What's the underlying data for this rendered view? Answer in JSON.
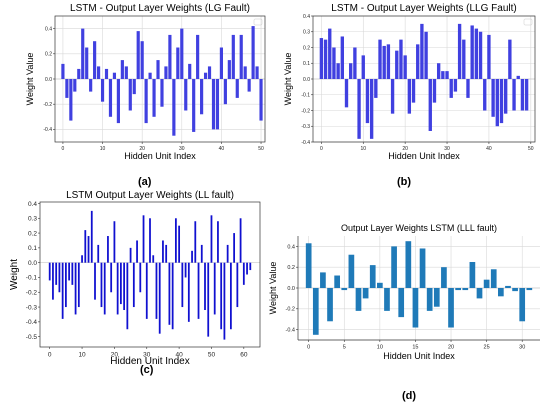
{
  "panel_labels": [
    "(a)",
    "(b)",
    "(c)",
    "(d)"
  ],
  "chart_data": [
    {
      "type": "bar",
      "title": "LSTM - Output Layer Weights (LG Fault)",
      "xlabel": "Hidden Unit Index",
      "ylabel": "Weight Value",
      "color": "#4040e0",
      "xlim": [
        -2,
        51
      ],
      "ylim": [
        -0.5,
        0.5
      ],
      "xticks": [
        0,
        10,
        20,
        30,
        40,
        50
      ],
      "yticks": [
        -0.4,
        -0.2,
        0.0,
        0.2,
        0.4
      ],
      "ytick_labels": [
        "-0.4",
        "-0.2",
        "0.0",
        "0.2",
        "0.4"
      ],
      "grid": true,
      "values": [
        0.12,
        -0.15,
        -0.33,
        -0.1,
        0.08,
        0.4,
        0.25,
        -0.1,
        0.3,
        0.1,
        -0.18,
        0.08,
        -0.3,
        0.05,
        -0.35,
        0.15,
        0.1,
        -0.25,
        -0.12,
        0.38,
        0.3,
        -0.35,
        0.05,
        -0.3,
        0.15,
        -0.22,
        0.1,
        0.35,
        -0.45,
        0.25,
        0.4,
        -0.25,
        0.12,
        -0.42,
        0.35,
        -0.28,
        0.05,
        0.1,
        -0.4,
        -0.4,
        0.25,
        -0.2,
        0.15,
        0.35,
        -0.15,
        0.35,
        0.1,
        -0.1,
        0.42,
        0.1,
        -0.33
      ]
    },
    {
      "type": "bar",
      "title": "LSTM - Output Layer Weights (LLG Fault)",
      "xlabel": "Hidden Unit Index",
      "ylabel": "Weight Value",
      "color": "#4040e0",
      "xlim": [
        -2,
        51
      ],
      "ylim": [
        -0.4,
        0.4
      ],
      "xticks": [
        0,
        10,
        20,
        30,
        40,
        50
      ],
      "yticks": [
        -0.4,
        -0.3,
        -0.2,
        -0.1,
        0.0,
        0.1,
        0.2,
        0.3,
        0.4
      ],
      "ytick_labels": [
        "-0.4",
        "-0.3",
        "-0.2",
        "-0.1",
        "0.0",
        "0.1",
        "0.2",
        "0.3",
        "0.4"
      ],
      "grid": true,
      "values": [
        0.26,
        0.25,
        0.32,
        0.2,
        0.1,
        0.27,
        -0.18,
        0.1,
        0.2,
        -0.38,
        0.15,
        -0.28,
        -0.38,
        -0.12,
        0.25,
        0.21,
        0.22,
        -0.22,
        0.18,
        0.25,
        0.15,
        -0.22,
        -0.15,
        0.22,
        0.35,
        0.3,
        -0.33,
        -0.15,
        0.1,
        0.05,
        0.05,
        -0.12,
        -0.08,
        0.35,
        0.25,
        -0.12,
        0.34,
        0.32,
        0.3,
        -0.2,
        0.28,
        -0.24,
        -0.3,
        -0.28,
        -0.22,
        0.25,
        -0.2,
        0.02,
        -0.2,
        -0.2
      ]
    },
    {
      "type": "bar",
      "title": "LSTM Output Layer Weights (LL fault)",
      "xlabel": "Hidden Unit Index",
      "ylabel": "Weight",
      "color": "#1010d0",
      "xlim": [
        -3,
        65
      ],
      "ylim": [
        -0.57,
        0.41
      ],
      "xticks": [
        0,
        10,
        20,
        30,
        40,
        50,
        60
      ],
      "yticks": [
        -0.5,
        -0.4,
        -0.3,
        -0.2,
        -0.1,
        0.0,
        0.1,
        0.2,
        0.3,
        0.4
      ],
      "ytick_labels": [
        "-0.5",
        "-0.4",
        "-0.3",
        "-0.2",
        "-0.1",
        "0.0",
        "0.1",
        "0.2",
        "0.3",
        "0.4"
      ],
      "grid": false,
      "values": [
        -0.12,
        -0.25,
        -0.15,
        -0.2,
        -0.38,
        -0.3,
        -0.12,
        -0.15,
        -0.35,
        -0.3,
        0.05,
        0.22,
        0.18,
        0.35,
        -0.25,
        0.12,
        -0.3,
        -0.35,
        0.18,
        -0.2,
        0.28,
        -0.35,
        -0.28,
        -0.32,
        -0.45,
        0.1,
        -0.3,
        0.15,
        -0.2,
        0.32,
        -0.38,
        0.3,
        0.05,
        -0.38,
        -0.48,
        0.15,
        0.12,
        -0.42,
        -0.45,
        0.3,
        0.25,
        -0.3,
        -0.1,
        -0.4,
        0.08,
        0.28,
        -0.38,
        0.12,
        -0.32,
        -0.5,
        0.32,
        -0.35,
        0.28,
        -0.45,
        -0.52,
        0.12,
        -0.45,
        0.2,
        -0.3,
        0.3,
        -0.15,
        -0.08,
        -0.05
      ]
    },
    {
      "type": "bar",
      "title": "Output Layer Weights LSTM (LLL fault)",
      "xlabel": "Hidden Unit Index",
      "ylabel": "Weight Value",
      "color": "#1f7ab8",
      "xlim": [
        -1.5,
        32.5
      ],
      "ylim": [
        -0.5,
        0.5
      ],
      "xticks": [
        0,
        5,
        10,
        15,
        20,
        25,
        30
      ],
      "yticks": [
        -0.4,
        -0.2,
        0.0,
        0.2,
        0.4
      ],
      "ytick_labels": [
        "-0.4",
        "-0.2",
        "0.0",
        "0.2",
        "0.4"
      ],
      "grid": true,
      "values": [
        0.43,
        -0.45,
        0.15,
        -0.32,
        0.12,
        -0.02,
        0.32,
        -0.22,
        -0.1,
        0.22,
        0.05,
        -0.22,
        0.4,
        -0.28,
        0.45,
        -0.38,
        0.38,
        -0.22,
        -0.18,
        0.2,
        -0.38,
        -0.02,
        -0.02,
        0.25,
        -0.1,
        0.08,
        0.18,
        -0.08,
        0.02,
        -0.03,
        -0.32,
        -0.02
      ]
    }
  ]
}
